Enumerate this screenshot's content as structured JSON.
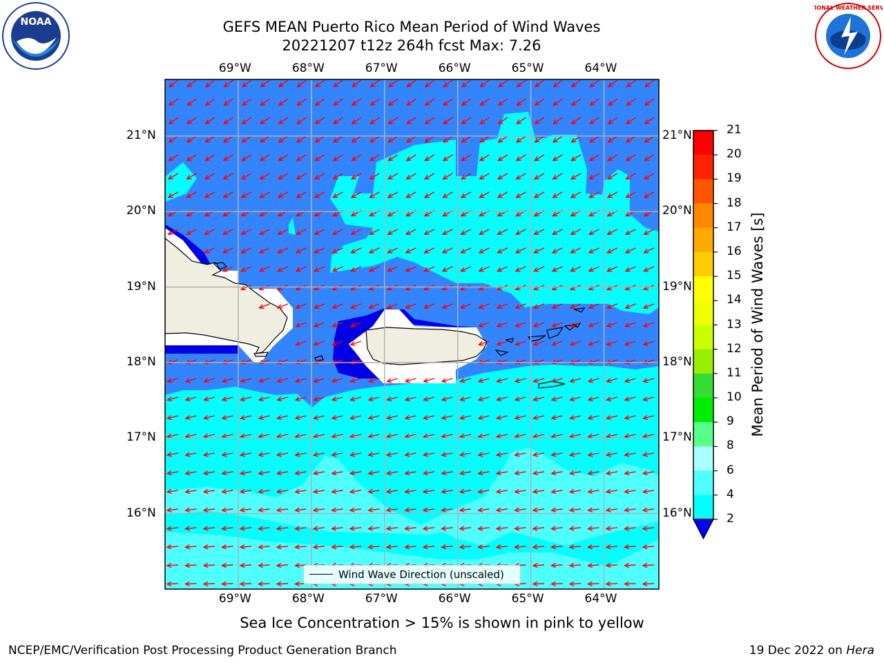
{
  "title": {
    "line1": "GEFS MEAN Puerto Rico Mean Period of Wind Waves",
    "line2": "20221207 t12z 264h fcst   Max: 7.26"
  },
  "logos": {
    "left": {
      "icon": "noaa-logo-icon",
      "text": "NOAA"
    },
    "right": {
      "icon": "nws-logo-icon",
      "text": "NATIONAL WEATHER SERVICE"
    }
  },
  "map": {
    "lon_labels": [
      "69°W",
      "68°W",
      "67°W",
      "66°W",
      "65°W",
      "64°W"
    ],
    "lat_labels": [
      "21°N",
      "20°N",
      "19°N",
      "18°N",
      "17°N",
      "16°N"
    ],
    "lon_range": [
      -70,
      -63.25
    ],
    "lat_range": [
      15,
      21.75
    ],
    "grid": true,
    "wind_direction": "northeast-to-southwest (arrows toward southwest / west)",
    "colors": {
      "band_2_4": "#3385ff",
      "band_4_6": "#00ffff",
      "band_6_8": "#4dffff",
      "band_lt_2": "#0000e6",
      "land": "#efeee0",
      "arrow": "#ff0000",
      "grid": "#b0b0b0"
    }
  },
  "legend": {
    "label": "Wind Wave Direction (unscaled)"
  },
  "colorbar": {
    "label": "Mean Period of Wind Waves [s]",
    "ticks": [
      "21",
      "20",
      "19",
      "18",
      "17",
      "16",
      "15",
      "14",
      "13",
      "12",
      "11",
      "10",
      "9",
      "8",
      "6",
      "4",
      "2"
    ],
    "colors": [
      "#ff0000",
      "#ff2200",
      "#ff5500",
      "#ff8800",
      "#ffaa00",
      "#ffcc00",
      "#ffff00",
      "#eeff00",
      "#ccff00",
      "#99ee00",
      "#33dd33",
      "#00ee00",
      "#55ff88",
      "#aaffff",
      "#4dffff",
      "#00ffff",
      "#0080ff"
    ],
    "extend_color": "#0000ff"
  },
  "caption": "Sea Ice Concentration > 15% is shown in pink to yellow",
  "footer": {
    "left": "NCEP/EMC/Verification Post Processing Product Generation Branch",
    "right_date": "19 Dec 2022 on ",
    "right_host": "Hera"
  }
}
